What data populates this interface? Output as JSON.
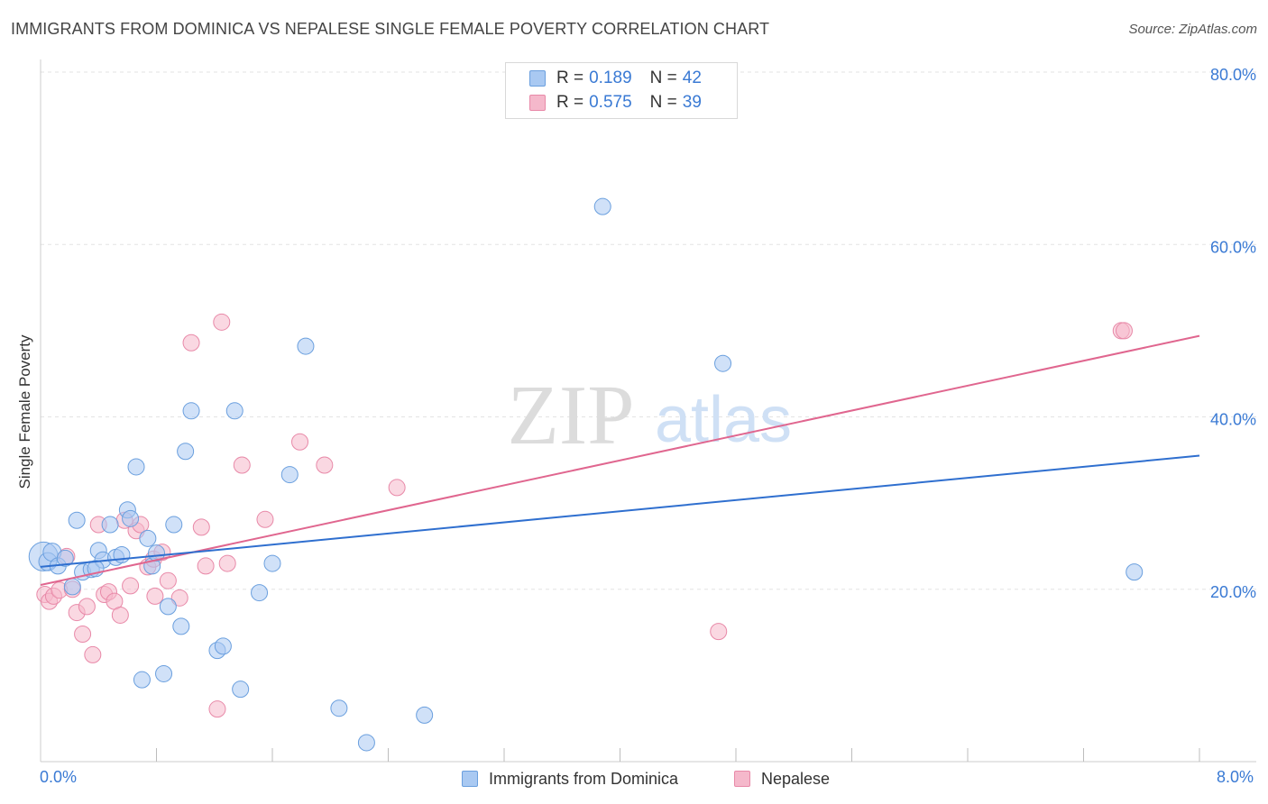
{
  "title": "IMMIGRANTS FROM DOMINICA VS NEPALESE SINGLE FEMALE POVERTY CORRELATION CHART",
  "source": "Source: ZipAtlas.com",
  "watermark": {
    "zip": "ZIP",
    "atlas": "atlas"
  },
  "legend": {
    "rows": [
      {
        "r_label": "R =",
        "r_value": "0.189",
        "n_label": "N =",
        "n_value": "42"
      },
      {
        "r_label": "R =",
        "r_value": "0.575",
        "n_label": "N =",
        "n_value": "39"
      }
    ]
  },
  "bottom_legend": {
    "series_a": "Immigrants from Dominica",
    "series_b": "Nepalese"
  },
  "colors": {
    "blue_fill": "#a9c9f2",
    "blue_stroke": "#6a9fde",
    "blue_line": "#2f6fcf",
    "pink_fill": "#f5b8cb",
    "pink_stroke": "#e889a8",
    "pink_line": "#e0668f",
    "grid": "#e3e3e3",
    "tick_label": "#3a7ad4",
    "axis": "#cccccc"
  },
  "chart_data": {
    "type": "scatter",
    "title": "IMMIGRANTS FROM DOMINICA VS NEPALESE SINGLE FEMALE POVERTY CORRELATION CHART",
    "xlabel": "",
    "ylabel": "Single Female Poverty",
    "xlim": [
      0,
      8
    ],
    "ylim": [
      0,
      80
    ],
    "x_tick_labels": [
      "0.0%",
      "8.0%"
    ],
    "y_ticks": [
      20,
      40,
      60,
      80
    ],
    "y_tick_labels": [
      "20.0%",
      "40.0%",
      "60.0%",
      "80.0%"
    ],
    "grid": true,
    "legend_position": "top-center",
    "series": [
      {
        "name": "Immigrants from Dominica",
        "R": 0.189,
        "N": 42,
        "trend": {
          "x": [
            0,
            8
          ],
          "y": [
            22.6,
            35.5
          ]
        },
        "points": [
          [
            0.02,
            23.8,
            16
          ],
          [
            0.05,
            23.2,
            10
          ],
          [
            0.08,
            24.3,
            10
          ],
          [
            0.12,
            22.7,
            9
          ],
          [
            0.17,
            23.6,
            9
          ],
          [
            0.22,
            20.3,
            9
          ],
          [
            0.25,
            28.0,
            9
          ],
          [
            0.29,
            22.0,
            9
          ],
          [
            0.35,
            22.3,
            9
          ],
          [
            0.4,
            24.5,
            9
          ],
          [
            0.43,
            23.4,
            9
          ],
          [
            0.48,
            27.5,
            9
          ],
          [
            0.52,
            23.7,
            9
          ],
          [
            0.56,
            24.0,
            9
          ],
          [
            0.6,
            29.2,
            9
          ],
          [
            0.62,
            28.2,
            9
          ],
          [
            0.66,
            34.2,
            9
          ],
          [
            0.7,
            9.5,
            9
          ],
          [
            0.74,
            25.9,
            9
          ],
          [
            0.77,
            22.7,
            9
          ],
          [
            0.8,
            24.2,
            9
          ],
          [
            0.85,
            10.2,
            9
          ],
          [
            0.88,
            18.0,
            9
          ],
          [
            0.92,
            27.5,
            9
          ],
          [
            0.97,
            15.7,
            9
          ],
          [
            1.0,
            36.0,
            9
          ],
          [
            1.04,
            40.7,
            9
          ],
          [
            1.22,
            12.9,
            9
          ],
          [
            1.26,
            13.4,
            9
          ],
          [
            1.34,
            40.7,
            9
          ],
          [
            1.38,
            8.4,
            9
          ],
          [
            1.51,
            19.6,
            9
          ],
          [
            1.6,
            23.0,
            9
          ],
          [
            1.72,
            33.3,
            9
          ],
          [
            1.83,
            48.2,
            9
          ],
          [
            2.06,
            6.2,
            9
          ],
          [
            2.25,
            2.2,
            9
          ],
          [
            2.65,
            5.4,
            9
          ],
          [
            3.88,
            64.4,
            9
          ],
          [
            4.71,
            46.2,
            9
          ],
          [
            7.55,
            22.0,
            9
          ],
          [
            0.38,
            22.4,
            9
          ]
        ]
      },
      {
        "name": "Nepalese",
        "R": 0.575,
        "N": 39,
        "trend": {
          "x": [
            0,
            8
          ],
          "y": [
            20.5,
            49.4
          ]
        },
        "points": [
          [
            0.03,
            19.4,
            9
          ],
          [
            0.06,
            18.6,
            9
          ],
          [
            0.09,
            19.2,
            9
          ],
          [
            0.13,
            19.9,
            9
          ],
          [
            0.18,
            23.8,
            9
          ],
          [
            0.22,
            20.0,
            9
          ],
          [
            0.25,
            17.3,
            9
          ],
          [
            0.29,
            14.8,
            9
          ],
          [
            0.32,
            18.0,
            9
          ],
          [
            0.36,
            12.4,
            9
          ],
          [
            0.4,
            27.5,
            9
          ],
          [
            0.44,
            19.4,
            9
          ],
          [
            0.47,
            19.7,
            9
          ],
          [
            0.51,
            18.6,
            9
          ],
          [
            0.55,
            17.0,
            9
          ],
          [
            0.58,
            28.0,
            9
          ],
          [
            0.62,
            20.4,
            9
          ],
          [
            0.66,
            26.8,
            9
          ],
          [
            0.69,
            27.5,
            9
          ],
          [
            0.74,
            22.6,
            9
          ],
          [
            0.78,
            23.5,
            9
          ],
          [
            0.79,
            19.2,
            9
          ],
          [
            0.84,
            24.3,
            9
          ],
          [
            0.88,
            21.0,
            9
          ],
          [
            0.96,
            19.0,
            9
          ],
          [
            1.04,
            48.6,
            9
          ],
          [
            1.11,
            27.2,
            9
          ],
          [
            1.14,
            22.7,
            9
          ],
          [
            1.22,
            6.1,
            9
          ],
          [
            1.25,
            51.0,
            9
          ],
          [
            1.29,
            23.0,
            9
          ],
          [
            1.39,
            34.4,
            9
          ],
          [
            1.55,
            28.1,
            9
          ],
          [
            1.79,
            37.1,
            9
          ],
          [
            1.96,
            34.4,
            9
          ],
          [
            2.46,
            31.8,
            9
          ],
          [
            4.68,
            15.1,
            9
          ],
          [
            7.46,
            50.0,
            9
          ],
          [
            7.48,
            50.0,
            9
          ]
        ]
      }
    ]
  }
}
